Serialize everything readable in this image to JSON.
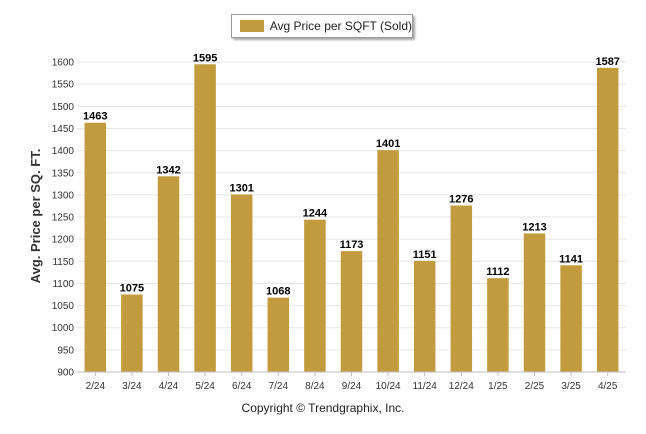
{
  "chart_data": {
    "type": "bar",
    "categories": [
      "2/24",
      "3/24",
      "4/24",
      "5/24",
      "6/24",
      "7/24",
      "8/24",
      "9/24",
      "10/24",
      "11/24",
      "12/24",
      "1/25",
      "2/25",
      "3/25",
      "4/25"
    ],
    "series": [
      {
        "name": "Avg Price per SQFT (Sold)",
        "values": [
          1463,
          1075,
          1342,
          1595,
          1301,
          1068,
          1244,
          1173,
          1401,
          1151,
          1276,
          1112,
          1213,
          1141,
          1587
        ]
      }
    ],
    "ylabel": "Avg. Price per SQ. FT.",
    "xlabel": "",
    "ylim": [
      900,
      1625
    ],
    "yticks": [
      900,
      950,
      1000,
      1050,
      1100,
      1150,
      1200,
      1250,
      1300,
      1350,
      1400,
      1450,
      1500,
      1550,
      1600
    ],
    "grid": true,
    "legend_position": "top-center",
    "bar_color": "#c29b3e"
  },
  "footer": {
    "copyright": "Copyright © Trendgraphix, Inc."
  }
}
